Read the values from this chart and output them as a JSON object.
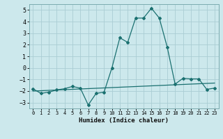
{
  "xlabel": "Humidex (Indice chaleur)",
  "ylabel": "",
  "bg_color": "#cce8ec",
  "grid_color": "#aacdd4",
  "line_color": "#1a7070",
  "xlim": [
    -0.5,
    23.5
  ],
  "ylim": [
    -3.5,
    5.5
  ],
  "xticks": [
    0,
    1,
    2,
    3,
    4,
    5,
    6,
    7,
    8,
    9,
    10,
    11,
    12,
    13,
    14,
    15,
    16,
    17,
    18,
    19,
    20,
    21,
    22,
    23
  ],
  "yticks": [
    -3,
    -2,
    -1,
    0,
    1,
    2,
    3,
    4,
    5
  ],
  "x": [
    0,
    1,
    2,
    3,
    4,
    5,
    6,
    7,
    8,
    9,
    10,
    11,
    12,
    13,
    14,
    15,
    16,
    17,
    18,
    19,
    20,
    21,
    22,
    23
  ],
  "y_main": [
    -1.8,
    -2.2,
    -2.1,
    -1.9,
    -1.8,
    -1.6,
    -1.75,
    -3.2,
    -2.2,
    -2.1,
    0.0,
    2.6,
    2.2,
    4.3,
    4.3,
    5.15,
    4.3,
    1.8,
    -1.4,
    -0.9,
    -0.95,
    -0.95,
    -1.85,
    -1.75
  ],
  "y_trend": [
    -2.0,
    -1.97,
    -1.94,
    -1.91,
    -1.88,
    -1.85,
    -1.82,
    -1.79,
    -1.76,
    -1.73,
    -1.7,
    -1.67,
    -1.64,
    -1.61,
    -1.58,
    -1.55,
    -1.52,
    -1.49,
    -1.46,
    -1.43,
    -1.4,
    -1.37,
    -1.34,
    -1.31
  ]
}
